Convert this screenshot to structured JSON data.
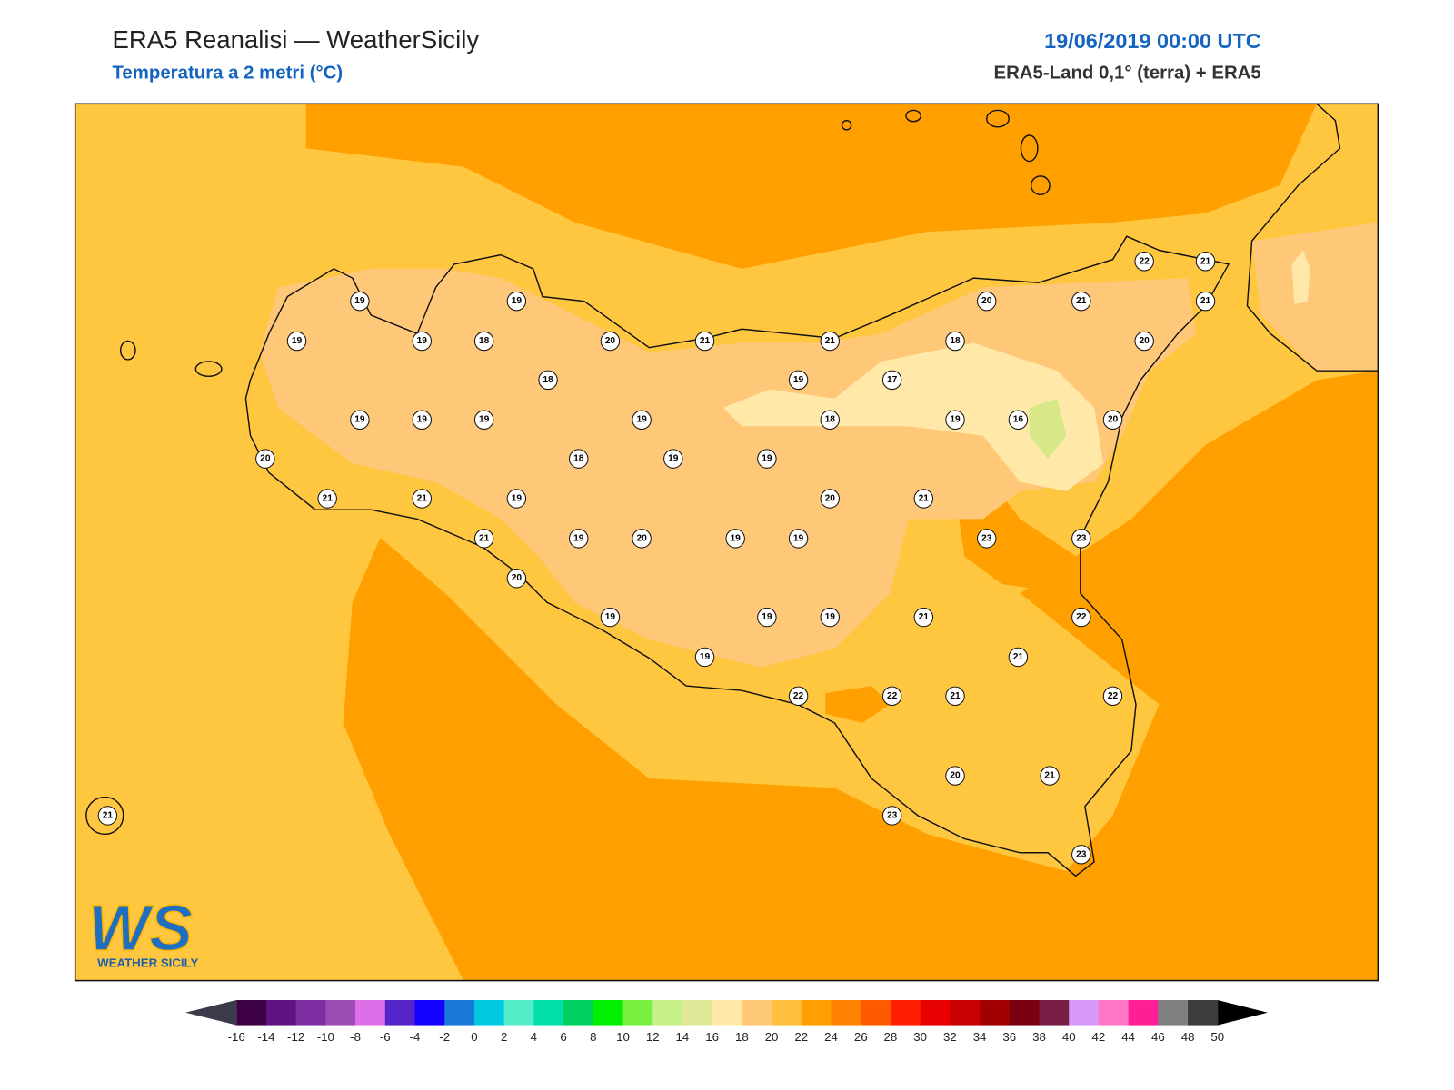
{
  "header": {
    "title": "ERA5 Reanalisi — WeatherSicily",
    "subtitle": "Temperatura a 2 metri (°C)",
    "date": "19/06/2019 00:00 UTC",
    "source": "ERA5-Land 0,1° (terra) + ERA5"
  },
  "stations": [
    19,
    19,
    19,
    19,
    18,
    20,
    21,
    21,
    20,
    21,
    22,
    21,
    21,
    18,
    20,
    18,
    19,
    17,
    19,
    19,
    19,
    19,
    18,
    19,
    16,
    20,
    20,
    18,
    19,
    19,
    21,
    21,
    19,
    20,
    21,
    21,
    19,
    20,
    19,
    19,
    23,
    23,
    20,
    19,
    19,
    19,
    21,
    22,
    19,
    21,
    22,
    22,
    21,
    22,
    20,
    21,
    23,
    23,
    21
  ],
  "logo": {
    "title": "WS",
    "subtitle": "WEATHER SICILY"
  },
  "colorbar": {
    "ticks": [
      -16,
      -14,
      -12,
      -10,
      -8,
      -6,
      -4,
      -2,
      0,
      2,
      4,
      6,
      8,
      10,
      12,
      14,
      16,
      18,
      20,
      22,
      24,
      26,
      28,
      30,
      32,
      34,
      36,
      38,
      40,
      42,
      44,
      46,
      48,
      50
    ],
    "colors": [
      "#3d0045",
      "#5e1480",
      "#7d2ea0",
      "#9b4db5",
      "#dd70e8",
      "#5524c8",
      "#1400ff",
      "#1a78d8",
      "#00c8e0",
      "#55ecc8",
      "#00e0a8",
      "#00d060",
      "#00f000",
      "#78f040",
      "#c8f088",
      "#e0e898",
      "#ffe8a8",
      "#ffc878",
      "#ffc040",
      "#ffa000",
      "#ff8200",
      "#ff5a00",
      "#ff1e00",
      "#e60000",
      "#c80000",
      "#a00000",
      "#780010",
      "#781e46",
      "#d898f8",
      "#ff78c8",
      "#ff1e96",
      "#808080",
      "#3c3c3c"
    ],
    "under": "#3a3a4a",
    "over": "#000000"
  }
}
